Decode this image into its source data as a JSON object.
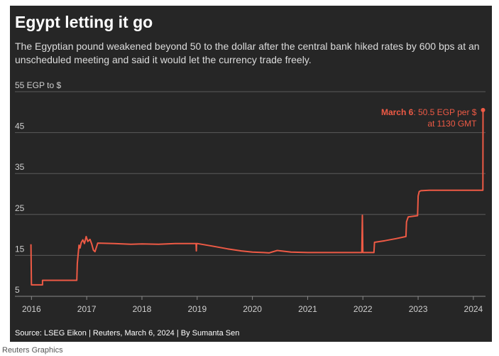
{
  "header": {
    "title": "Egypt letting it go",
    "subtitle": "The Egyptian pound weakened beyond 50 to the dollar after the central bank hiked rates by 600 bps at an unscheduled meeting and said it would let the currency trade freely."
  },
  "footer": {
    "source": "Source: LSEG Eikon | Reuters, March 6, 2024 | By Sumanta Sen",
    "credit": "Reuters Graphics"
  },
  "colors": {
    "background": "#262626",
    "line": "#ee5a45",
    "grid": "#5a5a5a",
    "text": "#cfcfcf"
  },
  "chart_data": {
    "type": "line",
    "title": "Egypt letting it go",
    "ylabel": "55 EGP to $",
    "ylim": [
      5,
      55
    ],
    "yticks": [
      5,
      15,
      25,
      35,
      45
    ],
    "ytick_labels": [
      "5",
      "15",
      "25",
      "35",
      "45"
    ],
    "xlim": [
      2015.7,
      2024.22
    ],
    "xticks": [
      2016,
      2017,
      2018,
      2019,
      2020,
      2021,
      2022,
      2023,
      2024
    ],
    "xtick_labels": [
      "2016",
      "2017",
      "2018",
      "2019",
      "2020",
      "2021",
      "2022",
      "2023",
      "2024"
    ],
    "grid": true,
    "series": [
      {
        "values": [
          [
            2015.99,
            17.7
          ],
          [
            2016.0,
            7.8
          ],
          [
            2016.2,
            7.8
          ],
          [
            2016.2,
            8.9
          ],
          [
            2016.82,
            8.9
          ],
          [
            2016.83,
            13.0
          ],
          [
            2016.86,
            17.5
          ],
          [
            2016.88,
            16.8
          ],
          [
            2016.9,
            18.1
          ],
          [
            2016.93,
            18.8
          ],
          [
            2016.96,
            17.9
          ],
          [
            2016.99,
            19.6
          ],
          [
            2017.02,
            18.4
          ],
          [
            2017.06,
            18.9
          ],
          [
            2017.09,
            17.8
          ],
          [
            2017.12,
            16.3
          ],
          [
            2017.15,
            15.9
          ],
          [
            2017.2,
            18.0
          ],
          [
            2017.5,
            17.9
          ],
          [
            2017.8,
            17.7
          ],
          [
            2018.0,
            17.8
          ],
          [
            2018.3,
            17.7
          ],
          [
            2018.6,
            17.9
          ],
          [
            2018.9,
            17.9
          ],
          [
            2018.98,
            17.9
          ],
          [
            2018.985,
            16.1
          ],
          [
            2018.99,
            17.9
          ],
          [
            2019.0,
            17.9
          ],
          [
            2019.3,
            17.2
          ],
          [
            2019.55,
            16.6
          ],
          [
            2019.8,
            16.1
          ],
          [
            2020.0,
            15.8
          ],
          [
            2020.2,
            15.7
          ],
          [
            2020.3,
            15.6
          ],
          [
            2020.45,
            16.2
          ],
          [
            2020.7,
            15.8
          ],
          [
            2021.0,
            15.7
          ],
          [
            2021.5,
            15.7
          ],
          [
            2021.98,
            15.7
          ],
          [
            2021.99,
            24.8
          ],
          [
            2022.0,
            15.7
          ],
          [
            2022.2,
            15.7
          ],
          [
            2022.21,
            18.2
          ],
          [
            2022.4,
            18.6
          ],
          [
            2022.6,
            19.1
          ],
          [
            2022.78,
            19.6
          ],
          [
            2022.79,
            23.2
          ],
          [
            2022.82,
            24.4
          ],
          [
            2022.99,
            24.7
          ],
          [
            2023.0,
            29.5
          ],
          [
            2023.02,
            30.6
          ],
          [
            2023.05,
            30.8
          ],
          [
            2023.2,
            30.9
          ],
          [
            2023.6,
            30.9
          ],
          [
            2024.0,
            30.9
          ],
          [
            2024.172,
            30.9
          ],
          [
            2024.175,
            50.5
          ]
        ]
      }
    ],
    "annotation": {
      "bold": "March 6",
      "text": ": 50.5 EGP per $",
      "line2": "at 1130 GMT",
      "x": 2024.175,
      "y": 50.5
    }
  }
}
